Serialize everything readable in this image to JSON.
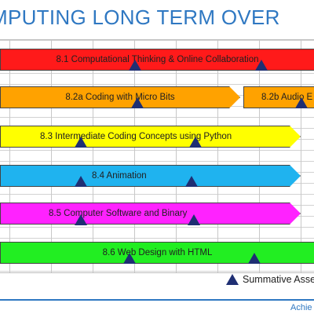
{
  "header": {
    "title": "MPUTING LONG TERM OVER"
  },
  "timeline": {
    "bars": [
      {
        "id": "8.1",
        "label": "8.1 Computational Thinking & Online Collaboration",
        "color": "#ff1a1a"
      },
      {
        "id": "8.2a",
        "label": "8.2a Coding with Micro Bits",
        "color": "#ffa200"
      },
      {
        "id": "8.2b",
        "label": "8.2b Audio E",
        "color": "#ffa200"
      },
      {
        "id": "8.3",
        "label": "8.3 Intermediate Coding Concepts using Python",
        "color": "#ffff00"
      },
      {
        "id": "8.4",
        "label": "8.4 Animation",
        "color": "#1fb3ef"
      },
      {
        "id": "8.5",
        "label": "8.5 Computer Software and Binary",
        "color": "#ff22ff"
      },
      {
        "id": "8.6",
        "label": "8.6 Web Design with HTML",
        "color": "#22ee22"
      }
    ],
    "marker_color": "#1f2f73"
  },
  "legend": {
    "label": "Summative Asses"
  },
  "footer": {
    "text": "Achie"
  }
}
